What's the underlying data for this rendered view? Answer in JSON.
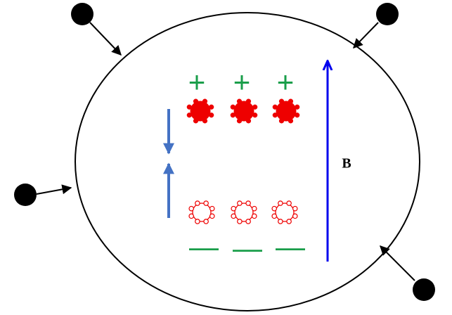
{
  "charges": {
    "positive": [
      "+",
      "+",
      "+"
    ],
    "negative": [
      "—",
      "—",
      "—"
    ]
  },
  "field": {
    "label": "B"
  }
}
